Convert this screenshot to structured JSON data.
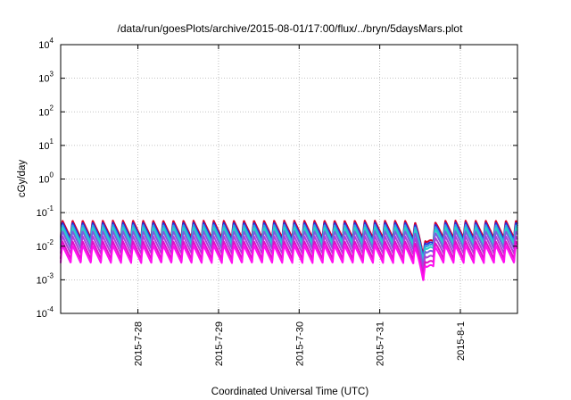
{
  "chart_data": {
    "type": "line",
    "title": "/data/run/goesPlots/archive/2015-08-01/17:00/flux/../bryn/5daysMars.plot",
    "xlabel": "Coordinated Universal Time (UTC)",
    "ylabel": "cGy/day",
    "yscale": "log",
    "ylim": [
      0.0001,
      10000
    ],
    "y_ticks": [
      {
        "base": "10",
        "exp": "-4",
        "value": 0.0001
      },
      {
        "base": "10",
        "exp": "-3",
        "value": 0.001
      },
      {
        "base": "10",
        "exp": "-2",
        "value": 0.01
      },
      {
        "base": "10",
        "exp": "-1",
        "value": 0.1
      },
      {
        "base": "10",
        "exp": "0",
        "value": 1
      },
      {
        "base": "10",
        "exp": "1",
        "value": 10
      },
      {
        "base": "10",
        "exp": "2",
        "value": 100
      },
      {
        "base": "10",
        "exp": "3",
        "value": 1000
      },
      {
        "base": "10",
        "exp": "4",
        "value": 10000
      }
    ],
    "xlim": [
      "2015-07-27 01:00",
      "2015-08-01 17:00"
    ],
    "x_ticks": [
      "2015-7-28",
      "2015-7-29",
      "2015-7-30",
      "2015-7-31",
      "2015-8-1"
    ],
    "grid": true,
    "legend": "none",
    "pattern": {
      "cycle_hours": 3,
      "peak_to_trough_ratio": 0.3,
      "dip": {
        "time": "2015-07-31 13:30",
        "factor": 0.25
      }
    },
    "series": [
      {
        "color": "#d4002a",
        "peak": 0.058
      },
      {
        "color": "#2b2bd8",
        "peak": 0.05
      },
      {
        "color": "#2fa0e8",
        "peak": 0.043
      },
      {
        "color": "#2ad0c8",
        "peak": 0.036
      },
      {
        "color": "#7a5ee0",
        "peak": 0.028
      },
      {
        "color": "#b040d8",
        "peak": 0.02
      },
      {
        "color": "#e010c8",
        "peak": 0.014
      },
      {
        "color": "#ff10f0",
        "peak": 0.0105
      }
    ]
  }
}
